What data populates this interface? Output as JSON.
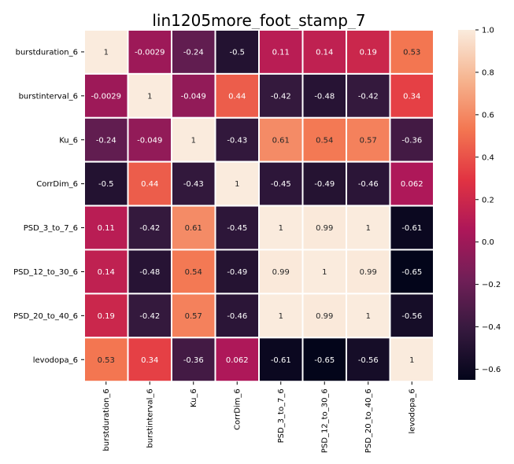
{
  "chart_data": {
    "type": "heatmap",
    "title": "lin1205more_foot_stamp_7",
    "row_labels": [
      "burstduration_6",
      "burstinterval_6",
      "Ku_6",
      "CorrDim_6",
      "PSD_3_to_7_6",
      "PSD_12_to_30_6",
      "PSD_20_to_40_6",
      "levodopa_6"
    ],
    "col_labels": [
      "burstduration_6",
      "burstinterval_6",
      "Ku_6",
      "CorrDim_6",
      "PSD_3_to_7_6",
      "PSD_12_to_30_6",
      "PSD_20_to_40_6",
      "levodopa_6"
    ],
    "values": [
      [
        1,
        -0.0029,
        -0.24,
        -0.5,
        0.11,
        0.14,
        0.19,
        0.53
      ],
      [
        -0.0029,
        1,
        -0.049,
        0.44,
        -0.42,
        -0.48,
        -0.42,
        0.34
      ],
      [
        -0.24,
        -0.049,
        1,
        -0.43,
        0.61,
        0.54,
        0.57,
        -0.36
      ],
      [
        -0.5,
        0.44,
        -0.43,
        1,
        -0.45,
        -0.49,
        -0.46,
        0.062
      ],
      [
        0.11,
        -0.42,
        0.61,
        -0.45,
        1,
        0.99,
        1,
        -0.61
      ],
      [
        0.14,
        -0.48,
        0.54,
        -0.49,
        0.99,
        1,
        0.99,
        -0.65
      ],
      [
        0.19,
        -0.42,
        0.57,
        -0.46,
        1,
        0.99,
        1,
        -0.56
      ],
      [
        0.53,
        0.34,
        -0.36,
        0.062,
        -0.61,
        -0.65,
        -0.56,
        1
      ]
    ],
    "annotations": [
      [
        "1",
        "-0.0029",
        "-0.24",
        "-0.5",
        "0.11",
        "0.14",
        "0.19",
        "0.53"
      ],
      [
        "-0.0029",
        "1",
        "-0.049",
        "0.44",
        "-0.42",
        "-0.48",
        "-0.42",
        "0.34"
      ],
      [
        "-0.24",
        "-0.049",
        "1",
        "-0.43",
        "0.61",
        "0.54",
        "0.57",
        "-0.36"
      ],
      [
        "-0.5",
        "0.44",
        "-0.43",
        "1",
        "-0.45",
        "-0.49",
        "-0.46",
        "0.062"
      ],
      [
        "0.11",
        "-0.42",
        "0.61",
        "-0.45",
        "1",
        "0.99",
        "1",
        "-0.61"
      ],
      [
        "0.14",
        "-0.48",
        "0.54",
        "-0.49",
        "0.99",
        "1",
        "0.99",
        "-0.65"
      ],
      [
        "0.19",
        "-0.42",
        "0.57",
        "-0.46",
        "1",
        "0.99",
        "1",
        "-0.56"
      ],
      [
        "0.53",
        "0.34",
        "-0.36",
        "0.062",
        "-0.61",
        "-0.65",
        "-0.56",
        "1"
      ]
    ],
    "colorbar": {
      "vmin": -0.65,
      "vmax": 1,
      "ticks": [
        1.0,
        0.8,
        0.6,
        0.4,
        0.2,
        0.0,
        -0.2,
        -0.4,
        -0.6
      ],
      "tick_labels": [
        "1.0",
        "0.8",
        "0.6",
        "0.4",
        "0.2",
        "0.0",
        "−0.2",
        "−0.4",
        "−0.6"
      ]
    },
    "colormap": "rocket",
    "colormap_stops": [
      "#03051a",
      "#35193e",
      "#701f57",
      "#ad1759",
      "#e13342",
      "#f37651",
      "#f6b48f",
      "#faebdd"
    ],
    "cell_border_color": "#ffffff",
    "grid": false
  }
}
